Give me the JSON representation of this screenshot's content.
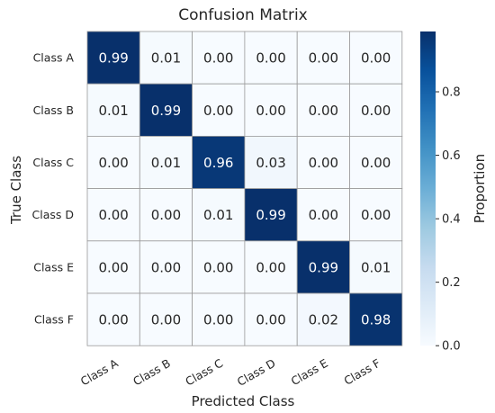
{
  "chart_data": {
    "type": "heatmap",
    "title": "Confusion Matrix",
    "xlabel": "Predicted Class",
    "ylabel": "True Class",
    "x_categories": [
      "Class A",
      "Class B",
      "Class C",
      "Class D",
      "Class E",
      "Class F"
    ],
    "y_categories": [
      "Class A",
      "Class B",
      "Class C",
      "Class D",
      "Class E",
      "Class F"
    ],
    "values": [
      [
        0.99,
        0.01,
        0.0,
        0.0,
        0.0,
        0.0
      ],
      [
        0.01,
        0.99,
        0.0,
        0.0,
        0.0,
        0.0
      ],
      [
        0.0,
        0.01,
        0.96,
        0.03,
        0.0,
        0.0
      ],
      [
        0.0,
        0.0,
        0.01,
        0.99,
        0.0,
        0.0
      ],
      [
        0.0,
        0.0,
        0.0,
        0.0,
        0.99,
        0.01
      ],
      [
        0.0,
        0.0,
        0.0,
        0.0,
        0.02,
        0.98
      ]
    ],
    "value_format": "0.00",
    "colorbar": {
      "label": "Proportion",
      "range": [
        0,
        0.99
      ],
      "ticks": [
        "0.0",
        "0.2",
        "0.4",
        "0.6",
        "0.8"
      ],
      "colormap": "Blues",
      "colors": [
        "#f7fbff",
        "#deebf7",
        "#c6dbef",
        "#9ecae1",
        "#6baed6",
        "#4292c6",
        "#2171b5",
        "#08519c",
        "#08306b"
      ]
    },
    "grid": true
  }
}
